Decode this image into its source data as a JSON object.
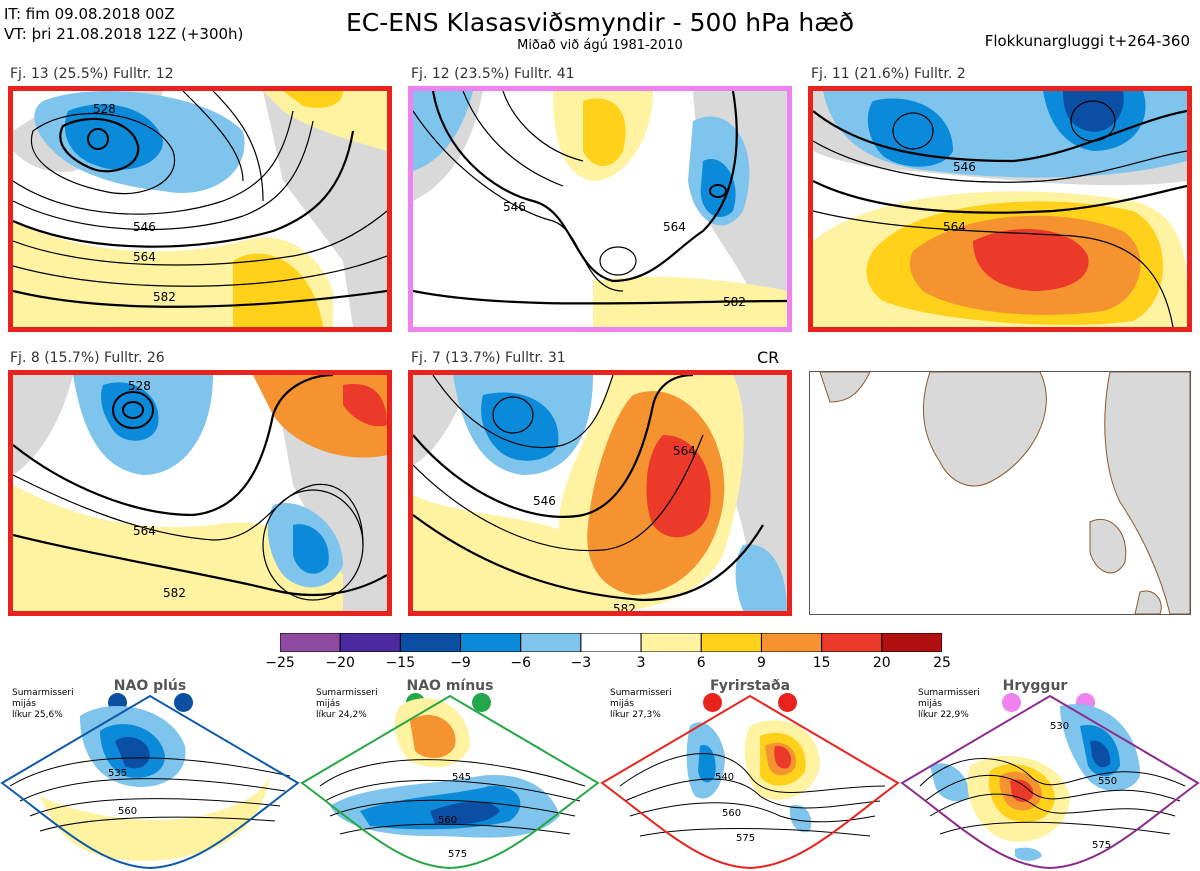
{
  "header": {
    "init_time": "IT: fim 09.08.2018 00Z",
    "valid_time": "VT: þri 21.08.2018 12Z  (+300h)",
    "title": "EC-ENS Klasasviðsmyndir - 500 hPa hæð",
    "subtitle": "Miðað við ágú 1981-2010",
    "window": "Flokkunargluggi t+264-360"
  },
  "colors": {
    "red_frame": "#e8231e",
    "pink_frame": "#ee82ee",
    "land": "#d9d9d9",
    "coast": "#8b5a2b"
  },
  "panels": [
    {
      "id": "p1",
      "label": "Fj. 13 (25.5%)   Fulltr. 12",
      "frame": "red"
    },
    {
      "id": "p2",
      "label": "Fj. 12 (23.5%)   Fulltr. 41",
      "frame": "pink"
    },
    {
      "id": "p3",
      "label": "Fj. 11 (21.6%)   Fulltr. 2",
      "frame": "red"
    },
    {
      "id": "p4",
      "label": "Fj. 8 (15.7%)   Fulltr. 26",
      "frame": "red"
    },
    {
      "id": "p5",
      "label": "Fj. 7 (13.7%)   Fulltr. 31",
      "frame": "red",
      "tag": "CR"
    }
  ],
  "contour_labels": [
    "528",
    "546",
    "564",
    "582",
    "546",
    "564",
    "582",
    "546",
    "564",
    "528",
    "564",
    "582",
    "546",
    "564",
    "582"
  ],
  "chart_data": {
    "type": "heatmap",
    "colorbar": {
      "ticks": [
        "−25",
        "−20",
        "−15",
        "−9",
        "−6",
        "−3",
        "3",
        "6",
        "9",
        "15",
        "20",
        "25"
      ],
      "colors": [
        "#8e4aa0",
        "#4b2aa0",
        "#0b4fa5",
        "#0a8ad8",
        "#7fc4ec",
        "#ffffff",
        "#fff2a0",
        "#ffd11a",
        "#f59331",
        "#ec3a2a",
        "#b0100f"
      ]
    }
  },
  "regimes": [
    {
      "name": "NAO plús",
      "note1": "Sumarmisseri",
      "note2": "mijás",
      "note3": "líkur 25,6%",
      "frame": "#0f5aa8",
      "dot": "#0a4fa0",
      "labels": [
        "535",
        "560"
      ]
    },
    {
      "name": "NAO mínus",
      "note1": "Sumarmisseri",
      "note2": "mijás",
      "note3": "líkur 24,2%",
      "frame": "#26a745",
      "dot": "#22a84a",
      "labels": [
        "545",
        "560",
        "575"
      ]
    },
    {
      "name": "Fyrirstaða",
      "note1": "Sumarmisseri",
      "note2": "mijás",
      "note3": "líkur 27,3%",
      "frame": "#e8231e",
      "dot": "#e8231e",
      "labels": [
        "540",
        "560",
        "575"
      ]
    },
    {
      "name": "Hryggur",
      "note1": "Sumarmisseri",
      "note2": "mijás",
      "note3": "líkur 22,9%",
      "frame": "#8b2a8b",
      "dot": "#ee82ee",
      "labels": [
        "530",
        "550",
        "575"
      ]
    }
  ]
}
